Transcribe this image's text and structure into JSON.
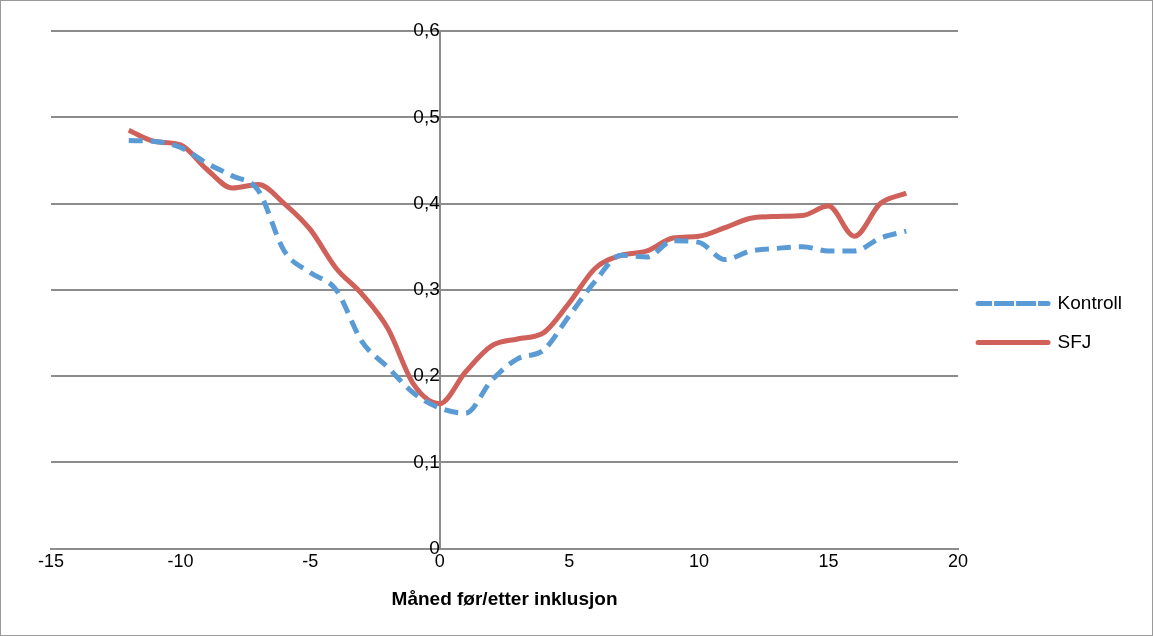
{
  "chart_data": {
    "type": "line",
    "xlabel": "Måned før/etter inklusjon",
    "x": [
      -12,
      -11,
      -10,
      -9,
      -8,
      -7,
      -6,
      -5,
      -4,
      -3,
      -2,
      -1,
      0,
      1,
      2,
      3,
      4,
      5,
      6,
      7,
      8,
      9,
      10,
      11,
      12,
      13,
      14,
      15,
      16,
      17,
      18
    ],
    "series": [
      {
        "name": "Kontroll",
        "color": "#5b9bd5",
        "line_style": "dashed",
        "values": [
          0.473,
          0.472,
          0.465,
          0.447,
          0.432,
          0.415,
          0.345,
          0.32,
          0.3,
          0.24,
          0.21,
          0.18,
          0.163,
          0.157,
          0.195,
          0.22,
          0.23,
          0.27,
          0.31,
          0.34,
          0.338,
          0.357,
          0.355,
          0.335,
          0.345,
          0.348,
          0.35,
          0.345,
          0.345,
          0.36,
          0.368
        ]
      },
      {
        "name": "SFJ",
        "color": "#d0605a",
        "line_style": "solid",
        "values": [
          0.485,
          0.472,
          0.468,
          0.44,
          0.418,
          0.422,
          0.4,
          0.37,
          0.325,
          0.295,
          0.255,
          0.19,
          0.168,
          0.205,
          0.235,
          0.243,
          0.25,
          0.285,
          0.325,
          0.34,
          0.345,
          0.36,
          0.362,
          0.372,
          0.383,
          0.385,
          0.386,
          0.397,
          0.362,
          0.4,
          0.412
        ]
      }
    ],
    "xlim": [
      -15,
      20
    ],
    "xticks": [
      -15,
      -10,
      -5,
      0,
      5,
      10,
      15,
      20
    ],
    "ylim": [
      0,
      0.6
    ],
    "yticks": [
      {
        "value": 0,
        "label": "0"
      },
      {
        "value": 0.1,
        "label": "0,1"
      },
      {
        "value": 0.2,
        "label": "0,2"
      },
      {
        "value": 0.3,
        "label": "0,3"
      },
      {
        "value": 0.4,
        "label": "0,4"
      },
      {
        "value": 0.5,
        "label": "0,5"
      },
      {
        "value": 0.6,
        "label": "0,6"
      }
    ],
    "grid": "y",
    "legend": "right",
    "marker": "none"
  }
}
